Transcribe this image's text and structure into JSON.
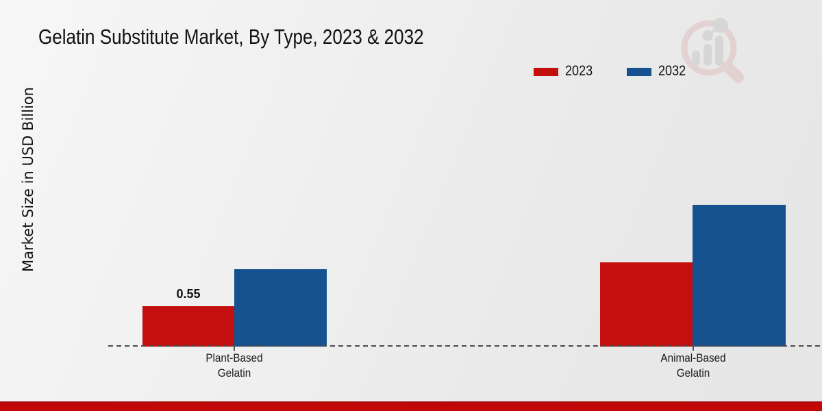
{
  "header": {
    "title": "Gelatin Substitute Market, By Type, 2023 & 2032"
  },
  "brand": {
    "logo_icon": "magnifier-bar-chart-watermark",
    "strip_color": "#c20707"
  },
  "chart_data": {
    "type": "bar",
    "title": "Gelatin Substitute Market, By Type, 2023 & 2032",
    "xlabel": "",
    "ylabel": "Market Size in USD Billion",
    "categories": [
      "Plant-Based Gelatin",
      "Animal-Based Gelatin"
    ],
    "categories_lines": [
      [
        "Plant-Based",
        "Gelatin"
      ],
      [
        "Animal-Based",
        "Gelatin"
      ]
    ],
    "series": [
      {
        "name": "2023",
        "color": "#c40f0f",
        "values": [
          0.55,
          1.14
        ]
      },
      {
        "name": "2032",
        "color": "#175290",
        "values": [
          1.05,
          1.92
        ]
      }
    ],
    "shown_value_labels": [
      {
        "series": "2023",
        "category": "Plant-Based Gelatin",
        "text": "0.55"
      }
    ],
    "ylim": [
      0,
      2.0
    ],
    "y_axis_ticks_visible": false,
    "grid": false,
    "baseline_style": "dashed",
    "legend_position": "top-right"
  }
}
